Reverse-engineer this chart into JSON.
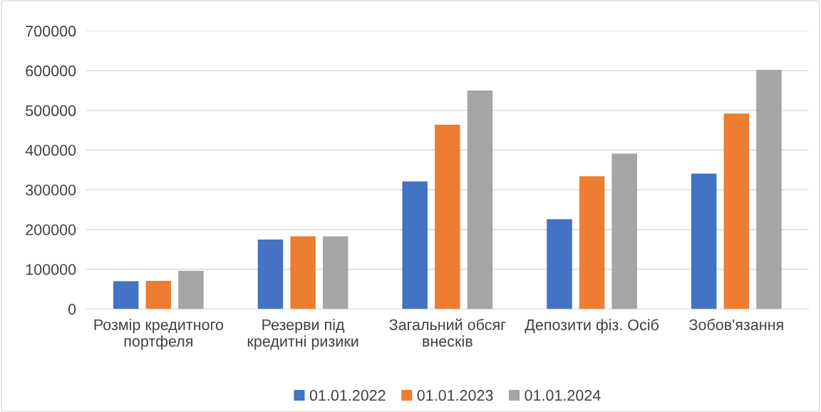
{
  "chart_data": {
    "type": "bar",
    "categories": [
      "Розмір кредитного\nпортфеля",
      "Резерви під\nкредитні ризики",
      "Загальний обсяг\nвнесків",
      "Депозити фіз. Осіб",
      "Зобов'язання"
    ],
    "series": [
      {
        "name": "01.01.2022",
        "color": "#4472c4",
        "values": [
          70000,
          175000,
          321000,
          226000,
          341000
        ]
      },
      {
        "name": "01.01.2023",
        "color": "#ed7d31",
        "values": [
          71000,
          183000,
          464000,
          334000,
          492000
        ]
      },
      {
        "name": "01.01.2024",
        "color": "#a5a5a5",
        "values": [
          96000,
          183000,
          550000,
          391000,
          602000
        ]
      }
    ],
    "ylim": [
      0,
      700000
    ],
    "yticks": [
      0,
      100000,
      200000,
      300000,
      400000,
      500000,
      600000,
      700000
    ],
    "grid": "y",
    "legend": "bottom"
  }
}
